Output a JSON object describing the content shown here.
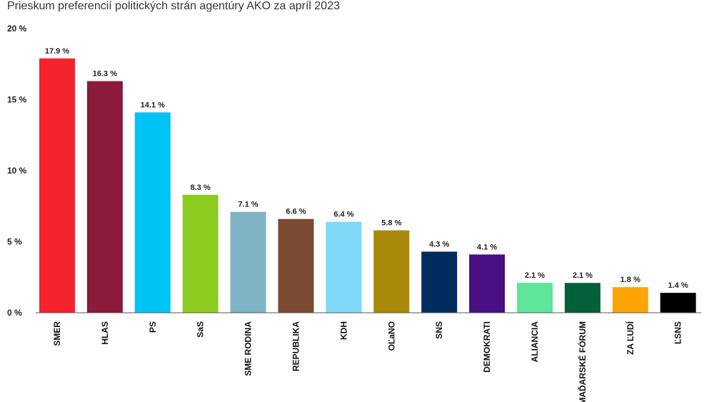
{
  "chart_data": {
    "type": "bar",
    "title": "Prieskum preferencií politických strán agentúry AKO za apríl 2023",
    "xlabel": "",
    "ylabel": "",
    "ylim": [
      0,
      20
    ],
    "yticks": [
      0,
      5,
      10,
      15,
      20
    ],
    "ytick_labels": [
      "0 %",
      "5 %",
      "10 %",
      "15 %",
      "20 %"
    ],
    "grid": false,
    "categories": [
      "SMER",
      "HLAS",
      "PS",
      "SaS",
      "SME RODINA",
      "REPUBLIKA",
      "KDH",
      "OĽaNO",
      "SNS",
      "DEMOKRATI",
      "ALIANCIA",
      "MAĎARSKÉ FÓRUM",
      "ZA ĽUDÍ",
      "ĽSNS"
    ],
    "values": [
      17.9,
      16.3,
      14.1,
      8.3,
      7.1,
      6.6,
      6.4,
      5.8,
      4.3,
      4.1,
      2.1,
      2.1,
      1.8,
      1.4
    ],
    "value_labels": [
      "17.9 %",
      "16.3 %",
      "14.1 %",
      "8.3 %",
      "7.1 %",
      "6.6 %",
      "6.4 %",
      "5.8 %",
      "4.3 %",
      "4.1 %",
      "2.1 %",
      "2.1 %",
      "1.8 %",
      "1.4 %"
    ],
    "colors": [
      "#f5232d",
      "#8b1a3d",
      "#00c3f5",
      "#8ccc1e",
      "#7fb3c6",
      "#7a4a33",
      "#7fd8f8",
      "#a8890a",
      "#002b5c",
      "#4a0f82",
      "#5de59b",
      "#03603a",
      "#fda405",
      "#000000"
    ]
  }
}
